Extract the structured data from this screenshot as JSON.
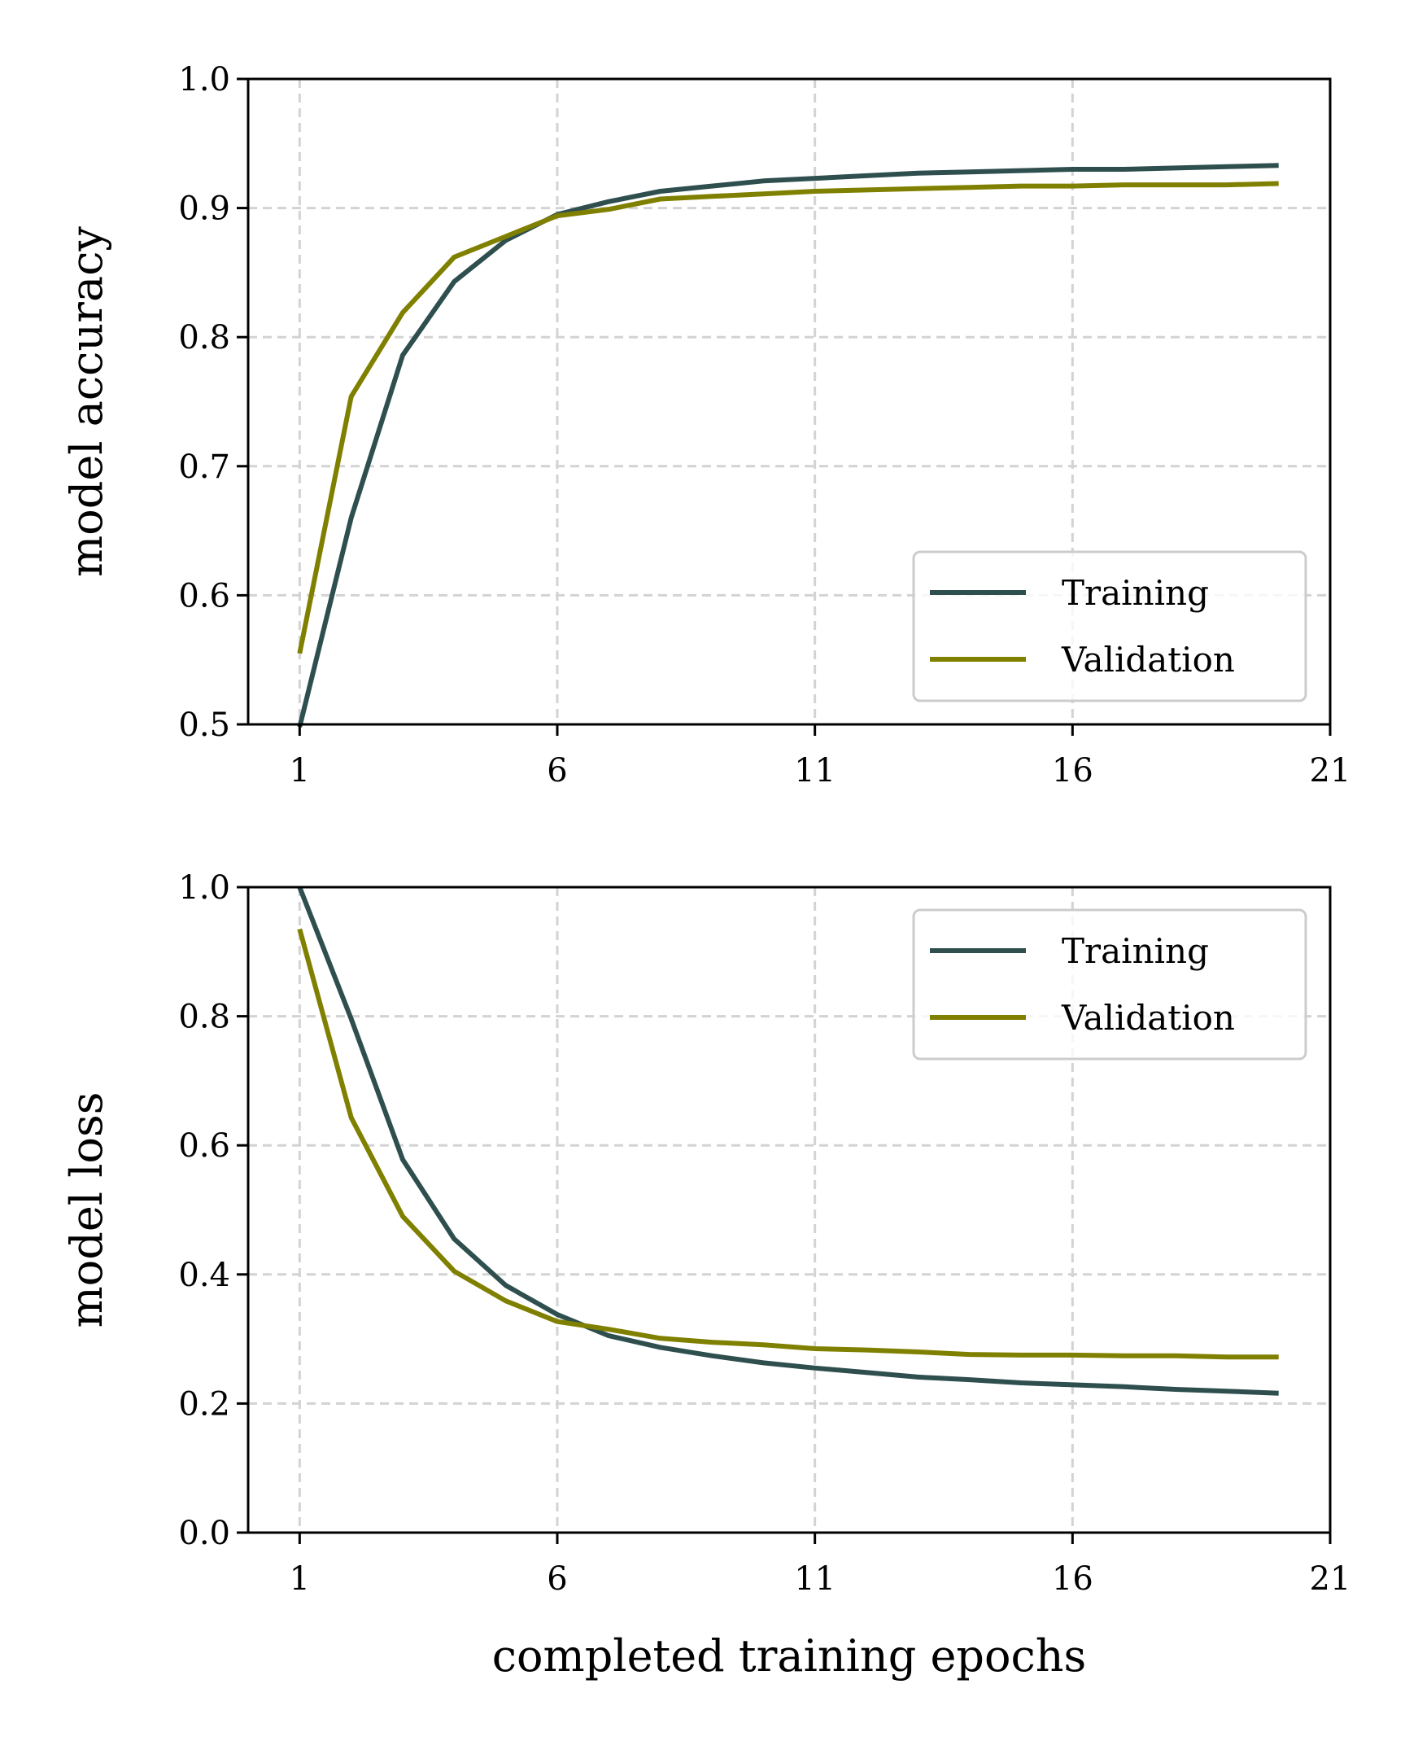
{
  "colors": {
    "training": "#2f4f4f",
    "validation": "#808000",
    "grid": "#d3d3d3",
    "axis": "#000000"
  },
  "chart_data": [
    {
      "type": "line",
      "title": "",
      "xlabel": "",
      "ylabel": "model accuracy",
      "xlim": [
        0,
        21
      ],
      "ylim": [
        0.5,
        1.0
      ],
      "xticks": [
        1,
        6,
        11,
        16,
        21
      ],
      "xtick_labels": [
        "1",
        "6",
        "11",
        "16",
        "21"
      ],
      "yticks": [
        0.5,
        0.6,
        0.7,
        0.8,
        0.9,
        1.0
      ],
      "ytick_labels": [
        "0.5",
        "0.6",
        "0.7",
        "0.8",
        "0.9",
        "1.0"
      ],
      "grid": true,
      "grid_style": "dashed",
      "legend_position": "lower right",
      "x": [
        1,
        2,
        3,
        4,
        5,
        6,
        7,
        8,
        9,
        10,
        11,
        12,
        13,
        14,
        15,
        16,
        17,
        18,
        19,
        20
      ],
      "series": [
        {
          "name": "Training",
          "color_key": "training",
          "values": [
            0.498,
            0.66,
            0.786,
            0.843,
            0.875,
            0.895,
            0.905,
            0.913,
            0.917,
            0.921,
            0.923,
            0.925,
            0.927,
            0.928,
            0.929,
            0.93,
            0.93,
            0.931,
            0.932,
            0.933
          ]
        },
        {
          "name": "Validation",
          "color_key": "validation",
          "values": [
            0.555,
            0.754,
            0.819,
            0.862,
            0.878,
            0.894,
            0.899,
            0.907,
            0.909,
            0.911,
            0.913,
            0.914,
            0.915,
            0.916,
            0.917,
            0.917,
            0.918,
            0.918,
            0.918,
            0.919
          ]
        }
      ]
    },
    {
      "type": "line",
      "title": "",
      "xlabel": "completed training epochs",
      "ylabel": "model loss",
      "xlim": [
        0,
        21
      ],
      "ylim": [
        0.0,
        1.0
      ],
      "xticks": [
        1,
        6,
        11,
        16,
        21
      ],
      "xtick_labels": [
        "1",
        "6",
        "11",
        "16",
        "21"
      ],
      "yticks": [
        0.0,
        0.2,
        0.4,
        0.6,
        0.8,
        1.0
      ],
      "ytick_labels": [
        "0.0",
        "0.2",
        "0.4",
        "0.6",
        "0.8",
        "1.0"
      ],
      "grid": true,
      "grid_style": "dashed",
      "legend_position": "upper right",
      "x": [
        1,
        2,
        3,
        4,
        5,
        6,
        7,
        8,
        9,
        10,
        11,
        12,
        13,
        14,
        15,
        16,
        17,
        18,
        19,
        20
      ],
      "series": [
        {
          "name": "Training",
          "color_key": "training",
          "values": [
            1.0,
            0.796,
            0.578,
            0.455,
            0.383,
            0.338,
            0.305,
            0.287,
            0.274,
            0.263,
            0.255,
            0.248,
            0.241,
            0.237,
            0.232,
            0.229,
            0.226,
            0.222,
            0.219,
            0.216
          ]
        },
        {
          "name": "Validation",
          "color_key": "validation",
          "values": [
            0.935,
            0.643,
            0.49,
            0.405,
            0.359,
            0.327,
            0.315,
            0.301,
            0.295,
            0.291,
            0.285,
            0.283,
            0.28,
            0.276,
            0.275,
            0.275,
            0.274,
            0.274,
            0.272,
            0.272
          ]
        }
      ]
    }
  ]
}
